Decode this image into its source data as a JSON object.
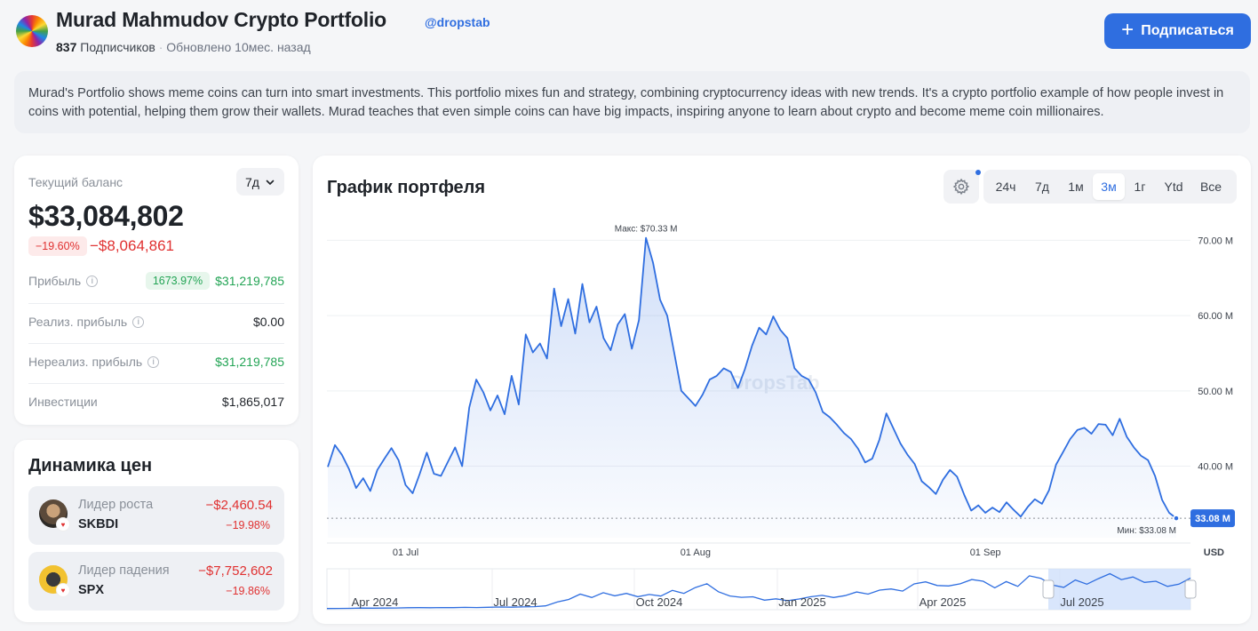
{
  "header": {
    "title": "Murad Mahmudov Crypto Portfolio",
    "handle": "@dropstab",
    "subscribers_count": "837",
    "subscribers_label": "Подписчиков",
    "separator": "·",
    "updated": "Обновлено 10мес. назад",
    "subscribe_label": "Подписаться"
  },
  "description": "Murad's Portfolio shows meme coins can turn into smart investments. This portfolio mixes fun and strategy, combining cryptocurrency ideas with new trends. It's a crypto portfolio example of how people invest in coins with potential, helping them grow their wallets. Murad teaches that even simple coins can have big impacts, inspiring anyone to learn about crypto and become meme coin millionaires.",
  "balance": {
    "label": "Текущий баланс",
    "period": "7д",
    "value": "$33,084,802",
    "change_pct": "−19.60%",
    "change_amount": "−$8,064,861",
    "rows": {
      "profit": {
        "label": "Прибыль",
        "pct": "1673.97%",
        "value": "$31,219,785"
      },
      "realized": {
        "label": "Реализ. прибыль",
        "value": "$0.00"
      },
      "unrealized": {
        "label": "Нереализ. прибыль",
        "value": "$31,219,785"
      },
      "investments": {
        "label": "Инвестиции",
        "value": "$1,865,017"
      }
    }
  },
  "dynamics": {
    "title": "Динамика цен",
    "gainer": {
      "label": "Лидер роста",
      "symbol": "SKBDI",
      "amount": "−$2,460.54",
      "pct": "−19.98%"
    },
    "loser": {
      "label": "Лидер падения",
      "symbol": "SPX",
      "amount": "−$7,752,602",
      "pct": "−19.86%"
    }
  },
  "chart_panel": {
    "title": "График портфеля",
    "ranges": [
      "24ч",
      "7д",
      "1м",
      "3м",
      "1г",
      "Ytd",
      "Все"
    ],
    "active_range": "3м",
    "watermark": "DropsTab"
  },
  "chart_data": {
    "type": "area",
    "currency": "USD",
    "unit": "M",
    "y_ticks": [
      {
        "value": 70,
        "label": "70.00 M"
      },
      {
        "value": 60,
        "label": "60.00 M"
      },
      {
        "value": 50,
        "label": "50.00 M"
      },
      {
        "value": 40,
        "label": "40.00 M"
      }
    ],
    "ylim": [
      30.5,
      73
    ],
    "x_ticks": [
      {
        "index": 11,
        "label": "01 Jul"
      },
      {
        "index": 52,
        "label": "01 Aug"
      },
      {
        "index": 93,
        "label": "01 Sep"
      }
    ],
    "max": {
      "index": 45,
      "value": 70.33,
      "label": "Макс: $70.33 M"
    },
    "min": {
      "index": 120,
      "value": 33.08,
      "label": "Мин: $33.08 M"
    },
    "current_label": "33.08 M",
    "values": [
      39.9,
      42.8,
      41.5,
      39.6,
      37.1,
      38.4,
      36.7,
      39.5,
      41.0,
      42.4,
      40.8,
      37.5,
      36.4,
      39.0,
      41.8,
      39.0,
      38.7,
      40.6,
      42.5,
      40.0,
      47.8,
      51.5,
      49.8,
      47.4,
      49.4,
      46.9,
      52.0,
      48.2,
      57.5,
      55.1,
      56.3,
      54.3,
      63.6,
      58.6,
      62.2,
      57.6,
      64.2,
      59.1,
      61.2,
      57.0,
      55.4,
      58.8,
      60.2,
      55.6,
      59.4,
      70.33,
      67.0,
      62.1,
      60.0,
      55.0,
      50.0,
      49.0,
      48.0,
      49.5,
      51.5,
      52.0,
      53.0,
      52.5,
      50.4,
      52.9,
      56.0,
      58.4,
      57.5,
      59.9,
      58.1,
      57.0,
      53.0,
      52.0,
      51.5,
      49.8,
      47.2,
      46.5,
      45.5,
      44.4,
      43.6,
      42.3,
      40.5,
      41.0,
      43.5,
      47.0,
      45.0,
      43.0,
      41.5,
      40.3,
      38.0,
      37.2,
      36.3,
      38.2,
      39.5,
      38.6,
      36.2,
      34.1,
      34.8,
      33.8,
      34.5,
      33.9,
      35.2,
      34.2,
      33.3,
      34.6,
      35.6,
      35.0,
      36.8,
      40.2,
      41.9,
      43.6,
      44.8,
      45.1,
      44.3,
      45.6,
      45.5,
      44.1,
      46.3,
      43.9,
      42.5,
      41.4,
      40.8,
      38.7,
      35.5,
      33.8,
      33.08
    ]
  },
  "navigator": {
    "labels": [
      "Apr 2024",
      "Jul 2024",
      "Oct 2024",
      "Jan 2025",
      "Apr 2025",
      "Jul 2025"
    ],
    "values": [
      0.2,
      0.3,
      0.4,
      0.6,
      0.5,
      0.6,
      0.7,
      0.9,
      1.0,
      0.9,
      1.1,
      1.0,
      1.2,
      1.1,
      1.3,
      1.5,
      1.4,
      1.6,
      1.8,
      2.5,
      5.8,
      8.0,
      12.6,
      9.7,
      13.8,
      11.1,
      13.2,
      10.4,
      12.3,
      10.9,
      15.8,
      13.2,
      18.2,
      21.5,
      14.6,
      11.0,
      9.8,
      10.3,
      7.4,
      8.5,
      6.9,
      8.4,
      10.3,
      11.5,
      9.7,
      11.3,
      14.4,
      12.6,
      16.0,
      17.0,
      15.2,
      21.3,
      23.1,
      20.0,
      19.6,
      21.4,
      25.1,
      23.6,
      18.0,
      23.3,
      19.2,
      28.3,
      26.1,
      20.4,
      18.4,
      24.7,
      21.1,
      25.8,
      30.1,
      25.0,
      27.3,
      22.6,
      23.6,
      19.2,
      21.1,
      26.4
    ]
  }
}
